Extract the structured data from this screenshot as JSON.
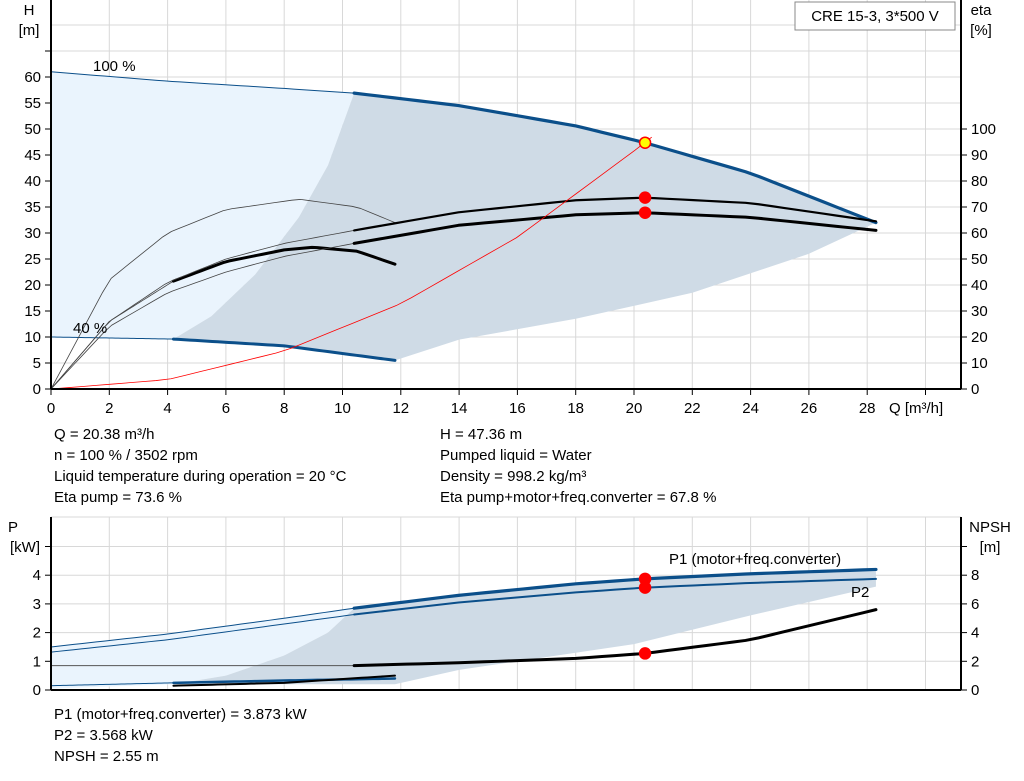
{
  "chart_data": [
    {
      "type": "line",
      "title": "CRE 15-3, 3*500 V",
      "xlabel": "Q [m³/h]",
      "ylabel_left": "H\n[m]",
      "ylabel_left_lines": [
        "H",
        "[m]"
      ],
      "ylabel_right_lines": [
        "eta",
        "[%]"
      ],
      "xlim": [
        0,
        31
      ],
      "ylim_left": [
        0,
        65
      ],
      "ylim_right": [
        0,
        120
      ],
      "xticks": [
        0,
        2,
        4,
        6,
        8,
        10,
        12,
        14,
        16,
        18,
        20,
        22,
        24,
        26,
        28
      ],
      "yticks_left": [
        0,
        5,
        10,
        15,
        20,
        25,
        30,
        35,
        40,
        45,
        50,
        55,
        60
      ],
      "yticks_right": [
        0,
        10,
        20,
        30,
        40,
        50,
        60,
        70,
        80,
        90,
        100
      ],
      "grid": true,
      "speed_labels": [
        "100 %",
        "40 %"
      ],
      "series": [
        {
          "key": "h100",
          "axis": "left",
          "x": [
            0,
            4,
            8,
            10.4,
            14,
            18,
            20.38,
            24,
            28.3
          ],
          "y": [
            61,
            59.2,
            57.8,
            56.9,
            54.5,
            50.6,
            47.36,
            41.5,
            32
          ]
        },
        {
          "key": "h40",
          "axis": "left",
          "x": [
            0,
            4.2,
            8,
            11.8
          ],
          "y": [
            10,
            9.6,
            8.3,
            5.5
          ]
        },
        {
          "key": "eta_pump",
          "axis": "right",
          "x": [
            0,
            2,
            4,
            6,
            8,
            10.4,
            14,
            18,
            20.38,
            24,
            28.3
          ],
          "y": [
            0,
            26,
            41,
            50,
            56,
            61,
            68,
            72.6,
            73.6,
            71.5,
            64.5
          ]
        },
        {
          "key": "eta_total",
          "axis": "right",
          "x": [
            0,
            2,
            4,
            6,
            8,
            10.4,
            14,
            18,
            20.38,
            24,
            28.3
          ],
          "y": [
            0,
            24,
            37,
            45,
            51,
            56,
            63,
            67,
            67.8,
            66,
            61
          ]
        },
        {
          "key": "eta_pump_40",
          "axis": "right",
          "x": [
            0,
            2,
            4,
            6,
            8.5,
            10.5,
            11.8
          ],
          "y": [
            0,
            42,
            60,
            69,
            73,
            70,
            64
          ]
        },
        {
          "key": "eta_total_40",
          "axis": "right",
          "x": [
            0,
            2,
            4.2,
            6,
            8,
            9,
            10.5,
            11.8
          ],
          "y": [
            0,
            26,
            41.5,
            49,
            53.5,
            54.5,
            53,
            48
          ]
        },
        {
          "key": "system",
          "axis": "left",
          "x": [
            0,
            4,
            8,
            12,
            16,
            20.38,
            20.6
          ],
          "y": [
            0,
            1.8,
            7.3,
            16.4,
            29.2,
            47.36,
            48.4
          ]
        }
      ],
      "duty_point": {
        "Q": 20.38,
        "H": 47.36,
        "eta_pump": 73.6,
        "eta_total": 67.8
      },
      "info_left": [
        "Q = 20.38 m³/h",
        "n = 100 % / 3502 rpm",
        "Liquid temperature during operation = 20 °C",
        "Eta pump = 73.6 %"
      ],
      "info_right": [
        "H = 47.36 m",
        "Pumped liquid = Water",
        "Density = 998.2 kg/m³",
        "Eta pump+motor+freq.converter = 67.8 %"
      ]
    },
    {
      "type": "line",
      "ylabel_left_lines": [
        "P",
        "[kW]"
      ],
      "ylabel_right_lines": [
        "NPSH",
        "[m]"
      ],
      "xlim": [
        0,
        31
      ],
      "ylim_left": [
        0,
        5
      ],
      "ylim_right": [
        0,
        10
      ],
      "yticks_left": [
        0,
        1,
        2,
        3,
        4
      ],
      "yticks_right": [
        0,
        2,
        4,
        6,
        8
      ],
      "grid": true,
      "series": [
        {
          "key": "p1",
          "name": "P1 (motor+freq.converter)",
          "axis": "left",
          "x": [
            0,
            4,
            8,
            10.4,
            14,
            18,
            20.38,
            24,
            28.3
          ],
          "y": [
            1.5,
            1.95,
            2.5,
            2.85,
            3.3,
            3.7,
            3.873,
            4.05,
            4.2
          ]
        },
        {
          "key": "p2",
          "name": "P2",
          "axis": "left",
          "x": [
            0,
            4,
            8,
            10.4,
            14,
            18,
            20.38,
            24,
            28.3
          ],
          "y": [
            1.32,
            1.75,
            2.3,
            2.63,
            3.05,
            3.4,
            3.568,
            3.73,
            3.87
          ]
        },
        {
          "key": "npsh",
          "axis": "right",
          "x": [
            0,
            10.4,
            14,
            18,
            20.38,
            24,
            28.3
          ],
          "y": [
            1.7,
            1.7,
            1.9,
            2.2,
            2.55,
            3.5,
            5.6
          ]
        },
        {
          "key": "p1_40",
          "axis": "left",
          "x": [
            0,
            4.2,
            8,
            11.8
          ],
          "y": [
            0.15,
            0.25,
            0.33,
            0.4
          ]
        },
        {
          "key": "npsh_40",
          "axis": "right",
          "x": [
            0,
            4.2,
            8,
            11.8
          ],
          "y": [
            0.2,
            0.3,
            0.5,
            1.0
          ]
        }
      ],
      "duty_point": {
        "P1": 3.873,
        "P2": 3.568,
        "NPSH": 2.55
      },
      "info": [
        "P1 (motor+freq.converter) = 3.873 kW",
        "P2 = 3.568 kW",
        "NPSH = 2.55 m"
      ]
    }
  ],
  "colors": {
    "blue": "#0b4f8a",
    "black": "#000000",
    "red": "#ff0000",
    "shade_light": "#eaf4fd",
    "shade_dark": "#cfdbe6",
    "grid": "#d8d8d8"
  }
}
